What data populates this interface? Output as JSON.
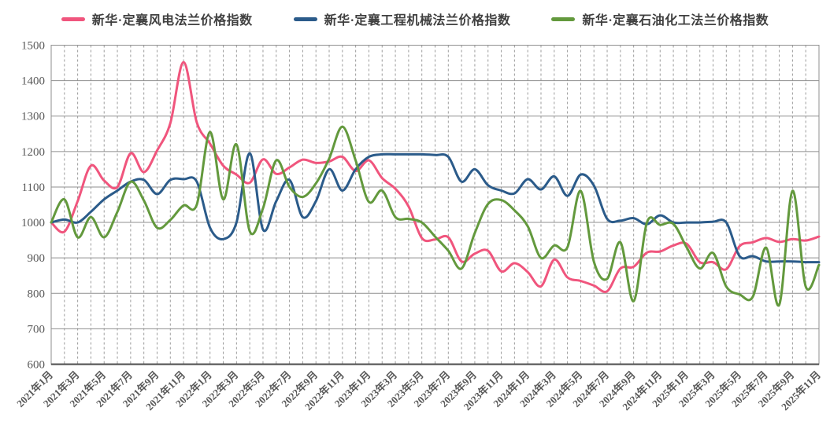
{
  "legend": {
    "items": [
      {
        "label": "新华·定襄风电法兰价格指数",
        "color": "#F0557D"
      },
      {
        "label": "新华·定襄工程机械法兰价格指数",
        "color": "#2B5B8A"
      },
      {
        "label": "新华·定襄石油化工法兰价格指数",
        "color": "#63993D"
      }
    ]
  },
  "chart_data": {
    "type": "line",
    "title": "",
    "legend_position": "top",
    "x_interval": "monthly",
    "x_start": "2021年1月",
    "x_end": "2025年11月",
    "x_tick_labels": [
      "2021年1月",
      "2021年3月",
      "2021年5月",
      "2021年7月",
      "2021年9月",
      "2021年11月",
      "2022年1月",
      "2022年3月",
      "2022年5月",
      "2022年7月",
      "2022年9月",
      "2022年11月",
      "2023年1月",
      "2023年3月",
      "2023年5月",
      "2023年7月",
      "2023年9月",
      "2023年11月",
      "2024年1月",
      "2024年3月",
      "2024年5月",
      "2024年7月",
      "2024年9月",
      "2024年11月",
      "2025年1月",
      "2025年3月",
      "2025年5月",
      "2025年7月",
      "2025年9月",
      "2025年11月"
    ],
    "x_tick_step_months": 2,
    "ylim": [
      600,
      1500
    ],
    "y_ticks": [
      600,
      700,
      800,
      900,
      1000,
      1100,
      1200,
      1300,
      1400,
      1500
    ],
    "grid": {
      "horizontal": "solid",
      "vertical": "dashed-every-month"
    },
    "series": [
      {
        "name": "新华·定襄风电法兰价格指数",
        "color": "#F0557D",
        "values": [
          1000,
          974,
          1060,
          1160,
          1118,
          1100,
          1195,
          1142,
          1203,
          1280,
          1452,
          1282,
          1222,
          1160,
          1135,
          1112,
          1178,
          1137,
          1155,
          1177,
          1168,
          1172,
          1185,
          1145,
          1175,
          1125,
          1095,
          1045,
          956,
          952,
          958,
          890,
          912,
          920,
          862,
          885,
          860,
          820,
          895,
          845,
          835,
          822,
          806,
          870,
          875,
          915,
          918,
          935,
          940,
          888,
          888,
          868,
          933,
          944,
          956,
          945,
          953,
          949,
          960
        ]
      },
      {
        "name": "新华·定襄工程机械法兰价格指数",
        "color": "#2B5B8A",
        "values": [
          1000,
          1008,
          1000,
          1030,
          1065,
          1090,
          1115,
          1120,
          1080,
          1120,
          1122,
          1115,
          985,
          953,
          1000,
          1195,
          980,
          1060,
          1120,
          1015,
          1060,
          1150,
          1090,
          1150,
          1185,
          1192,
          1192,
          1192,
          1192,
          1190,
          1185,
          1115,
          1150,
          1105,
          1090,
          1082,
          1122,
          1093,
          1130,
          1075,
          1135,
          1104,
          1010,
          1005,
          1012,
          995,
          1020,
          1000,
          1000,
          1000,
          1002,
          1000,
          905,
          905,
          890,
          890,
          890,
          888,
          888
        ]
      },
      {
        "name": "新华·定襄石油化工法兰价格指数",
        "color": "#63993D",
        "values": [
          1000,
          1065,
          958,
          1015,
          958,
          1030,
          1115,
          1062,
          985,
          1007,
          1048,
          1050,
          1255,
          1065,
          1220,
          975,
          1040,
          1175,
          1100,
          1072,
          1110,
          1180,
          1270,
          1175,
          1058,
          1090,
          1015,
          1010,
          1000,
          960,
          920,
          870,
          970,
          1052,
          1063,
          1034,
          989,
          900,
          935,
          930,
          1089,
          889,
          841,
          944,
          778,
          1000,
          993,
          996,
          930,
          870,
          914,
          819,
          797,
          790,
          929,
          768,
          1089,
          819,
          880
        ]
      }
    ]
  }
}
